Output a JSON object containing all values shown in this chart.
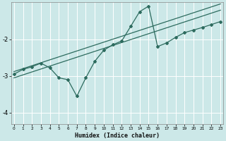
{
  "xlabel": "Humidex (Indice chaleur)",
  "ylabel": "",
  "bg_color": "#cce8e8",
  "line_color": "#2d6b5e",
  "grid_color": "#b8d8d8",
  "x_data": [
    0,
    1,
    2,
    3,
    4,
    5,
    6,
    7,
    8,
    9,
    10,
    11,
    12,
    13,
    14,
    15,
    16,
    17,
    18,
    19,
    20,
    21,
    22,
    23
  ],
  "y_main": [
    -2.95,
    -2.82,
    -2.75,
    -2.65,
    -2.78,
    -3.05,
    -3.1,
    -3.55,
    -3.05,
    -2.6,
    -2.3,
    -2.15,
    -2.05,
    -1.65,
    -1.25,
    -1.1,
    -2.2,
    -2.1,
    -1.95,
    -1.82,
    -1.75,
    -1.68,
    -1.6,
    -1.52
  ],
  "y_trend_upper": [
    -2.88,
    -2.8,
    -2.72,
    -2.64,
    -2.56,
    -2.48,
    -2.4,
    -2.32,
    -2.24,
    -2.16,
    -2.08,
    -2.0,
    -1.92,
    -1.84,
    -1.76,
    -1.68,
    -1.6,
    -1.52,
    -1.44,
    -1.36,
    -1.28,
    -1.2,
    -1.12,
    -1.04
  ],
  "y_trend_lower": [
    -3.05,
    -2.97,
    -2.89,
    -2.81,
    -2.73,
    -2.65,
    -2.57,
    -2.49,
    -2.41,
    -2.33,
    -2.25,
    -2.17,
    -2.09,
    -2.01,
    -1.93,
    -1.85,
    -1.77,
    -1.69,
    -1.61,
    -1.53,
    -1.45,
    -1.37,
    -1.29,
    -1.21
  ],
  "ylim": [
    -4.3,
    -1.0
  ],
  "yticks": [
    -4,
    -3,
    -2
  ],
  "xlim": [
    -0.3,
    23.3
  ],
  "xticks": [
    0,
    1,
    2,
    3,
    4,
    5,
    6,
    7,
    8,
    9,
    10,
    11,
    12,
    13,
    14,
    15,
    16,
    17,
    18,
    19,
    20,
    21,
    22,
    23
  ]
}
